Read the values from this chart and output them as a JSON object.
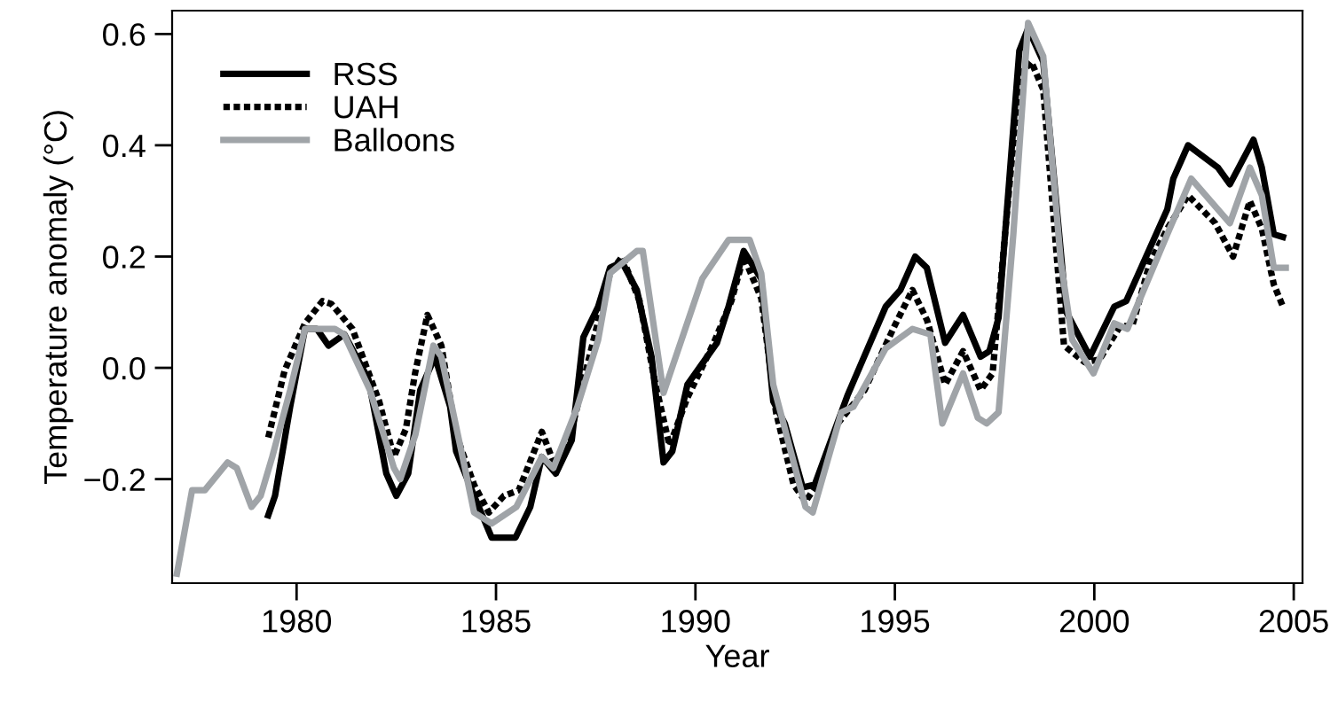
{
  "chart_data": {
    "type": "line",
    "xlabel": "Year",
    "ylabel": "Temperature anomaly (°C)",
    "xlim": [
      1976.88,
      2005.22
    ],
    "xticks": [
      1980,
      1985,
      1990,
      1995,
      2000,
      2005
    ],
    "ylim": [
      -0.387,
      0.642
    ],
    "yticks": [
      {
        "value": -0.2,
        "label": "−0.2"
      },
      {
        "value": 0.0,
        "label": "0.0"
      },
      {
        "value": 0.2,
        "label": "0.2"
      },
      {
        "value": 0.4,
        "label": "0.4"
      },
      {
        "value": 0.6,
        "label": "0.6"
      }
    ],
    "grid": false,
    "legend": "top left",
    "marker": "none",
    "series": [
      {
        "name": "RSS",
        "color": "#000000",
        "line_style": "solid",
        "x": [
          1979.29,
          1979.46,
          1979.84,
          1980.21,
          1980.51,
          1980.8,
          1981.0,
          1981.2,
          1981.8,
          1982.25,
          1982.5,
          1982.8,
          1983.1,
          1983.47,
          1983.85,
          1984.0,
          1984.45,
          1984.89,
          1985.49,
          1985.86,
          1986.15,
          1986.5,
          1986.9,
          1987.19,
          1987.56,
          1987.86,
          1988.16,
          1988.53,
          1988.9,
          1989.2,
          1989.42,
          1989.8,
          1990.54,
          1990.83,
          1991.21,
          1991.65,
          1991.95,
          1992.24,
          1992.69,
          1992.99,
          1993.81,
          1994.77,
          1995.14,
          1995.51,
          1995.8,
          1996.26,
          1996.71,
          1997.15,
          1997.37,
          1997.6,
          1998.12,
          1998.34,
          1998.72,
          1999.3,
          1999.89,
          2000.5,
          2000.8,
          2001.83,
          2001.98,
          2002.35,
          2003.1,
          2003.4,
          2003.99,
          2004.2,
          2004.5,
          2004.73
        ],
        "values": [
          -0.265,
          -0.23,
          -0.07,
          0.07,
          0.07,
          0.04,
          0.05,
          0.06,
          -0.02,
          -0.19,
          -0.23,
          -0.19,
          -0.04,
          0.02,
          -0.07,
          -0.15,
          -0.23,
          -0.305,
          -0.305,
          -0.25,
          -0.16,
          -0.19,
          -0.13,
          0.055,
          0.11,
          0.18,
          0.19,
          0.14,
          0.02,
          -0.17,
          -0.15,
          -0.03,
          0.045,
          0.11,
          0.21,
          0.16,
          -0.06,
          -0.1,
          -0.215,
          -0.21,
          -0.05,
          0.11,
          0.14,
          0.2,
          0.18,
          0.045,
          0.095,
          0.02,
          0.03,
          0.09,
          0.57,
          0.61,
          0.55,
          0.1,
          0.02,
          0.11,
          0.12,
          0.285,
          0.34,
          0.4,
          0.36,
          0.33,
          0.41,
          0.36,
          0.24,
          0.235
        ]
      },
      {
        "name": "UAH",
        "color": "#000000",
        "line_style": "dotted",
        "x": [
          1979.29,
          1979.7,
          1980.21,
          1980.65,
          1980.87,
          1981.4,
          1982.07,
          1982.44,
          1982.74,
          1982.97,
          1983.28,
          1983.63,
          1984.0,
          1984.45,
          1984.82,
          1985.2,
          1985.57,
          1986.15,
          1986.5,
          1986.9,
          1987.41,
          1987.86,
          1988.16,
          1988.6,
          1988.97,
          1989.35,
          1989.79,
          1990.46,
          1990.9,
          1991.21,
          1991.65,
          1992.02,
          1992.46,
          1992.76,
          1993.05,
          1993.57,
          1994.24,
          1994.99,
          1995.44,
          1995.81,
          1996.26,
          1996.71,
          1997.15,
          1997.45,
          1997.75,
          1998.12,
          1998.42,
          1998.72,
          1999.24,
          1999.76,
          2000.13,
          2000.65,
          2000.95,
          2001.4,
          2001.83,
          2002.35,
          2003.03,
          2003.48,
          2003.9,
          2004.2,
          2004.5,
          2004.73
        ],
        "values": [
          -0.125,
          -0.005,
          0.08,
          0.12,
          0.115,
          0.07,
          -0.06,
          -0.16,
          -0.11,
          -0.01,
          0.095,
          0.04,
          -0.12,
          -0.21,
          -0.26,
          -0.23,
          -0.22,
          -0.115,
          -0.18,
          -0.11,
          0.04,
          0.17,
          0.2,
          0.12,
          -0.02,
          -0.14,
          -0.055,
          0.045,
          0.12,
          0.2,
          0.125,
          -0.08,
          -0.21,
          -0.24,
          -0.21,
          -0.1,
          -0.04,
          0.075,
          0.14,
          0.085,
          -0.03,
          0.03,
          -0.04,
          -0.01,
          0.23,
          0.525,
          0.55,
          0.5,
          0.04,
          0.01,
          0.015,
          0.075,
          0.075,
          0.19,
          0.25,
          0.31,
          0.26,
          0.2,
          0.3,
          0.25,
          0.15,
          0.11
        ]
      },
      {
        "name": "Balloons",
        "color": "#a0a4a8",
        "line_style": "solid",
        "x": [
          1977.0,
          1977.38,
          1977.7,
          1978.27,
          1978.5,
          1978.87,
          1979.1,
          1979.39,
          1979.84,
          1980.21,
          1980.96,
          1981.19,
          1981.84,
          1982.44,
          1982.6,
          1982.98,
          1983.43,
          1983.63,
          1984.22,
          1984.45,
          1984.89,
          1985.51,
          1986.15,
          1986.44,
          1987.04,
          1987.56,
          1987.86,
          1988.53,
          1988.68,
          1989.2,
          1990.17,
          1990.83,
          1991.0,
          1991.36,
          1991.65,
          1991.95,
          1992.39,
          1992.76,
          1992.94,
          1993.66,
          1993.96,
          1994.77,
          1995.44,
          1995.89,
          1996.19,
          1996.71,
          1997.08,
          1997.3,
          1997.6,
          1997.97,
          1998.34,
          1998.72,
          1999.16,
          1999.45,
          1999.98,
          2000.5,
          2000.83,
          2001.83,
          2002.43,
          2003.4,
          2003.9,
          2004.2,
          2004.5,
          2004.8
        ],
        "values": [
          -0.37,
          -0.22,
          -0.22,
          -0.17,
          -0.18,
          -0.25,
          -0.23,
          -0.16,
          -0.04,
          0.07,
          0.07,
          0.06,
          -0.04,
          -0.18,
          -0.2,
          -0.12,
          0.04,
          0.02,
          -0.18,
          -0.26,
          -0.28,
          -0.25,
          -0.16,
          -0.18,
          -0.07,
          0.05,
          0.17,
          0.21,
          0.21,
          -0.045,
          0.16,
          0.23,
          0.23,
          0.23,
          0.17,
          -0.03,
          -0.15,
          -0.25,
          -0.26,
          -0.08,
          -0.07,
          0.035,
          0.07,
          0.06,
          -0.1,
          -0.01,
          -0.09,
          -0.1,
          -0.08,
          0.24,
          0.62,
          0.56,
          0.19,
          0.05,
          -0.01,
          0.08,
          0.07,
          0.24,
          0.34,
          0.26,
          0.36,
          0.31,
          0.18,
          0.18
        ]
      }
    ]
  }
}
